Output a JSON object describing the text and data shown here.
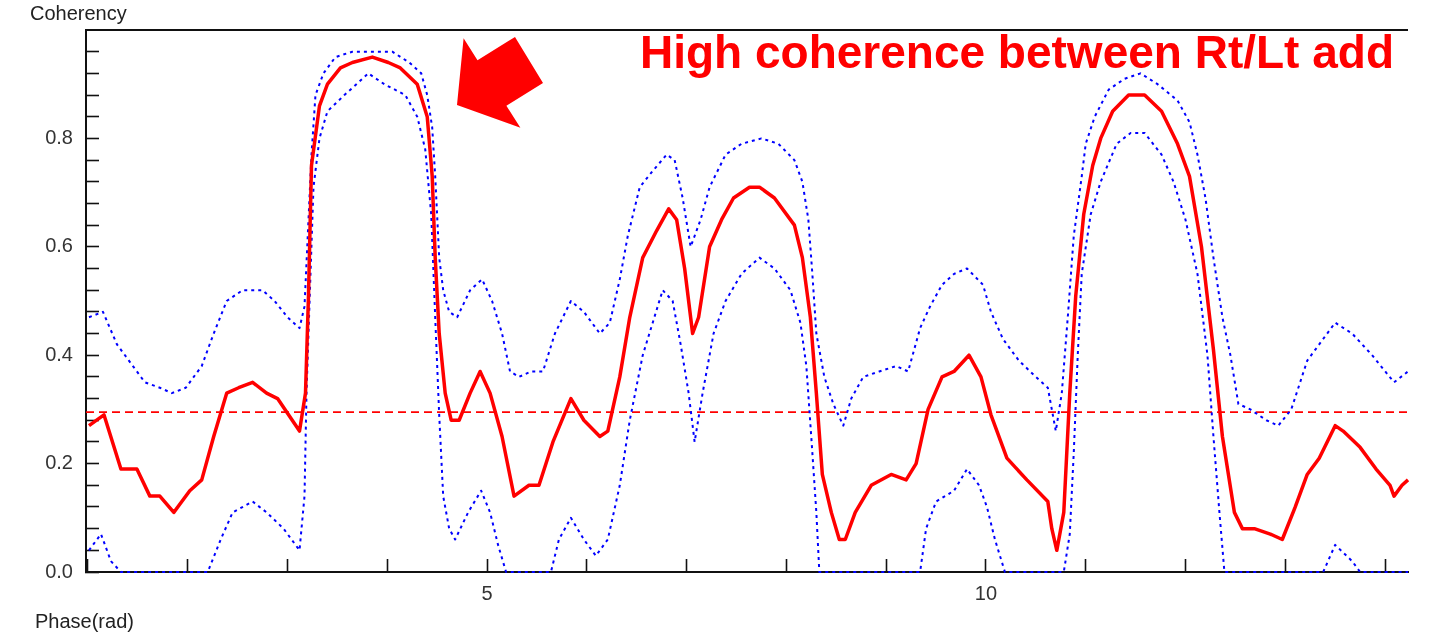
{
  "chart_data": {
    "type": "line",
    "ylabel": "Coherency",
    "xlabel": "Phase(rad)",
    "annotations": [
      "High coherence between Rt/Lt add"
    ],
    "xlim": [
      0.98,
      14.23
    ],
    "xticks": [
      {
        "value": 1,
        "label": null
      },
      {
        "value": 2,
        "label": null
      },
      {
        "value": 3,
        "label": null
      },
      {
        "value": 4,
        "label": null
      },
      5,
      {
        "value": 6,
        "label": null
      },
      {
        "value": 7,
        "label": null
      },
      {
        "value": 8,
        "label": null
      },
      {
        "value": 9,
        "label": null
      },
      10,
      {
        "value": 11,
        "label": null
      },
      {
        "value": 12,
        "label": null
      },
      {
        "value": 13,
        "label": null
      },
      {
        "value": 14,
        "label": null
      }
    ],
    "ylim": [
      0,
      1
    ],
    "yticks": [
      {
        "value": 0,
        "label": "0.0"
      },
      {
        "value": 0.04,
        "label": null
      },
      {
        "value": 0.08,
        "label": null
      },
      {
        "value": 0.12,
        "label": null
      },
      {
        "value": 0.16,
        "label": null
      },
      0.2,
      {
        "value": 0.24,
        "label": null
      },
      {
        "value": 0.28,
        "label": null
      },
      {
        "value": 0.32,
        "label": null
      },
      {
        "value": 0.36,
        "label": null
      },
      0.4,
      {
        "value": 0.44,
        "label": null
      },
      {
        "value": 0.48,
        "label": null
      },
      {
        "value": 0.52,
        "label": null
      },
      {
        "value": 0.56,
        "label": null
      },
      0.6,
      {
        "value": 0.64,
        "label": null
      },
      {
        "value": 0.68,
        "label": null
      },
      {
        "value": 0.72,
        "label": null
      },
      {
        "value": 0.76,
        "label": null
      },
      0.8,
      {
        "value": 0.84,
        "label": null
      },
      {
        "value": 0.88,
        "label": null
      },
      {
        "value": 0.92,
        "label": null
      },
      {
        "value": 0.96,
        "label": null
      }
    ],
    "ref_lines": [
      {
        "axis": "y",
        "value": 0.295,
        "color": "#ff0000",
        "line_style": "dashed"
      }
    ],
    "series": [
      {
        "color": "#ff0000",
        "line_style": "solid",
        "x": [
          1.01,
          1.16,
          1.33,
          1.49,
          1.62,
          1.72,
          1.86,
          2.02,
          2.14,
          2.26,
          2.39,
          2.51,
          2.65,
          2.79,
          2.9,
          3.12,
          3.18,
          3.21,
          3.24,
          3.32,
          3.4,
          3.53,
          3.65,
          3.85,
          4.01,
          4.13,
          4.3,
          4.4,
          4.45,
          4.48,
          4.52,
          4.58,
          4.64,
          4.72,
          4.83,
          4.93,
          5.03,
          5.15,
          5.27,
          5.42,
          5.52,
          5.66,
          5.84,
          5.97,
          6.13,
          6.21,
          6.33,
          6.43,
          6.56,
          6.7,
          6.82,
          6.9,
          6.98,
          7.06,
          7.12,
          7.23,
          7.35,
          7.47,
          7.63,
          7.73,
          7.88,
          8.08,
          8.16,
          8.24,
          8.3,
          8.36,
          8.45,
          8.53,
          8.59,
          8.69,
          8.85,
          9.05,
          9.2,
          9.3,
          9.42,
          9.56,
          9.68,
          9.83,
          9.95,
          10.05,
          10.21,
          10.41,
          10.62,
          10.66,
          10.71,
          10.78,
          10.84,
          10.9,
          10.98,
          11.07,
          11.15,
          11.27,
          11.43,
          11.59,
          11.76,
          11.92,
          12.04,
          12.16,
          12.28,
          12.37,
          12.49,
          12.57,
          12.69,
          12.85,
          12.97,
          13.1,
          13.22,
          13.34,
          13.5,
          13.58,
          13.75,
          13.91,
          14.05,
          14.09,
          14.17,
          14.23
        ],
        "values": [
          0.27,
          0.29,
          0.19,
          0.19,
          0.14,
          0.14,
          0.11,
          0.15,
          0.17,
          0.25,
          0.33,
          0.34,
          0.35,
          0.33,
          0.32,
          0.26,
          0.33,
          0.51,
          0.75,
          0.86,
          0.9,
          0.93,
          0.94,
          0.95,
          0.94,
          0.93,
          0.9,
          0.84,
          0.73,
          0.58,
          0.44,
          0.33,
          0.28,
          0.28,
          0.33,
          0.37,
          0.33,
          0.25,
          0.14,
          0.16,
          0.16,
          0.24,
          0.32,
          0.28,
          0.25,
          0.26,
          0.36,
          0.47,
          0.58,
          0.63,
          0.67,
          0.65,
          0.56,
          0.44,
          0.47,
          0.6,
          0.65,
          0.69,
          0.71,
          0.71,
          0.69,
          0.64,
          0.58,
          0.47,
          0.33,
          0.18,
          0.11,
          0.06,
          0.06,
          0.11,
          0.16,
          0.18,
          0.17,
          0.2,
          0.3,
          0.36,
          0.37,
          0.4,
          0.36,
          0.29,
          0.21,
          0.17,
          0.13,
          0.08,
          0.04,
          0.11,
          0.33,
          0.51,
          0.66,
          0.75,
          0.8,
          0.85,
          0.88,
          0.88,
          0.85,
          0.79,
          0.73,
          0.6,
          0.41,
          0.25,
          0.11,
          0.08,
          0.08,
          0.07,
          0.06,
          0.12,
          0.18,
          0.21,
          0.27,
          0.26,
          0.23,
          0.19,
          0.16,
          0.14,
          0.16,
          0.17
        ]
      },
      {
        "color": "#0000ff",
        "line_style": "dotted",
        "x": [
          1.01,
          1.15,
          1.29,
          1.41,
          1.57,
          1.72,
          1.84,
          1.98,
          2.14,
          2.26,
          2.39,
          2.55,
          2.65,
          2.75,
          2.87,
          3.0,
          3.12,
          3.17,
          3.21,
          3.24,
          3.28,
          3.36,
          3.48,
          3.65,
          3.89,
          4.05,
          4.22,
          4.34,
          4.4,
          4.45,
          4.48,
          4.52,
          4.56,
          4.62,
          4.7,
          4.83,
          4.95,
          5.05,
          5.15,
          5.23,
          5.32,
          5.44,
          5.56,
          5.68,
          5.84,
          5.97,
          6.13,
          6.23,
          6.33,
          6.41,
          6.53,
          6.66,
          6.8,
          6.88,
          6.96,
          7.04,
          7.14,
          7.23,
          7.39,
          7.55,
          7.75,
          7.92,
          8.08,
          8.16,
          8.22,
          8.26,
          8.3,
          8.38,
          8.47,
          8.57,
          8.65,
          8.77,
          8.93,
          9.1,
          9.22,
          9.34,
          9.44,
          9.56,
          9.68,
          9.81,
          9.97,
          10.05,
          10.17,
          10.33,
          10.5,
          10.62,
          10.7,
          10.76,
          10.82,
          10.88,
          10.96,
          11.0,
          11.09,
          11.23,
          11.39,
          11.55,
          11.72,
          11.92,
          12.04,
          12.12,
          12.2,
          12.28,
          12.37,
          12.45,
          12.53,
          12.65,
          12.81,
          12.93,
          13.06,
          13.22,
          13.34,
          13.5,
          13.67,
          13.87,
          14.09,
          14.23
        ],
        "values": [
          0.47,
          0.48,
          0.42,
          0.39,
          0.35,
          0.34,
          0.33,
          0.34,
          0.38,
          0.44,
          0.5,
          0.52,
          0.52,
          0.52,
          0.5,
          0.47,
          0.45,
          0.49,
          0.65,
          0.77,
          0.88,
          0.92,
          0.95,
          0.96,
          0.96,
          0.96,
          0.94,
          0.92,
          0.88,
          0.82,
          0.73,
          0.58,
          0.52,
          0.48,
          0.47,
          0.52,
          0.54,
          0.5,
          0.44,
          0.37,
          0.36,
          0.37,
          0.37,
          0.44,
          0.5,
          0.48,
          0.44,
          0.46,
          0.54,
          0.62,
          0.71,
          0.74,
          0.77,
          0.76,
          0.69,
          0.6,
          0.65,
          0.71,
          0.77,
          0.79,
          0.8,
          0.79,
          0.76,
          0.72,
          0.65,
          0.55,
          0.44,
          0.36,
          0.31,
          0.27,
          0.32,
          0.36,
          0.37,
          0.38,
          0.37,
          0.45,
          0.49,
          0.53,
          0.55,
          0.56,
          0.53,
          0.48,
          0.43,
          0.39,
          0.36,
          0.34,
          0.26,
          0.33,
          0.47,
          0.62,
          0.73,
          0.79,
          0.84,
          0.89,
          0.91,
          0.92,
          0.9,
          0.87,
          0.83,
          0.77,
          0.69,
          0.58,
          0.47,
          0.4,
          0.31,
          0.3,
          0.28,
          0.27,
          0.3,
          0.39,
          0.42,
          0.46,
          0.44,
          0.4,
          0.35,
          0.37
        ]
      },
      {
        "color": "#0000ff",
        "line_style": "dotted",
        "x": [
          1.01,
          1.13,
          1.23,
          1.33,
          2.2,
          2.33,
          2.45,
          2.65,
          2.79,
          2.96,
          3.12,
          3.17,
          3.19,
          3.23,
          3.26,
          3.32,
          3.4,
          3.57,
          3.81,
          3.97,
          4.18,
          4.3,
          4.38,
          4.44,
          4.48,
          4.52,
          4.56,
          4.62,
          4.68,
          4.81,
          4.94,
          5.03,
          5.11,
          5.19,
          5.64,
          5.72,
          5.84,
          5.97,
          6.09,
          6.21,
          6.33,
          6.43,
          6.56,
          6.66,
          6.76,
          6.86,
          6.94,
          7.02,
          7.08,
          7.16,
          7.27,
          7.39,
          7.55,
          7.73,
          7.88,
          8.04,
          8.14,
          8.2,
          8.26,
          8.3,
          8.33,
          9.34,
          9.4,
          9.5,
          9.68,
          9.81,
          9.93,
          10.01,
          10.09,
          10.19,
          10.78,
          10.84,
          10.88,
          10.92,
          10.96,
          11.05,
          11.15,
          11.31,
          11.45,
          11.59,
          11.76,
          11.88,
          12.0,
          12.12,
          12.22,
          12.28,
          12.34,
          12.39,
          13.38,
          13.5,
          13.67,
          13.75,
          14.23
        ],
        "values": [
          0.04,
          0.07,
          0.02,
          0,
          0,
          0.06,
          0.11,
          0.13,
          0.11,
          0.08,
          0.04,
          0.14,
          0.33,
          0.55,
          0.71,
          0.8,
          0.85,
          0.88,
          0.92,
          0.9,
          0.88,
          0.84,
          0.78,
          0.66,
          0.47,
          0.29,
          0.14,
          0.08,
          0.06,
          0.11,
          0.15,
          0.11,
          0.05,
          0,
          0,
          0.06,
          0.1,
          0.06,
          0.03,
          0.06,
          0.16,
          0.28,
          0.4,
          0.46,
          0.52,
          0.5,
          0.42,
          0.33,
          0.24,
          0.33,
          0.44,
          0.5,
          0.55,
          0.58,
          0.56,
          0.52,
          0.46,
          0.38,
          0.22,
          0.11,
          0,
          0,
          0.08,
          0.13,
          0.15,
          0.19,
          0.16,
          0.12,
          0.06,
          0,
          0,
          0.07,
          0.22,
          0.4,
          0.55,
          0.66,
          0.72,
          0.79,
          0.81,
          0.81,
          0.77,
          0.72,
          0.65,
          0.55,
          0.4,
          0.25,
          0.11,
          0,
          0,
          0.05,
          0.02,
          0,
          0
        ]
      }
    ]
  }
}
